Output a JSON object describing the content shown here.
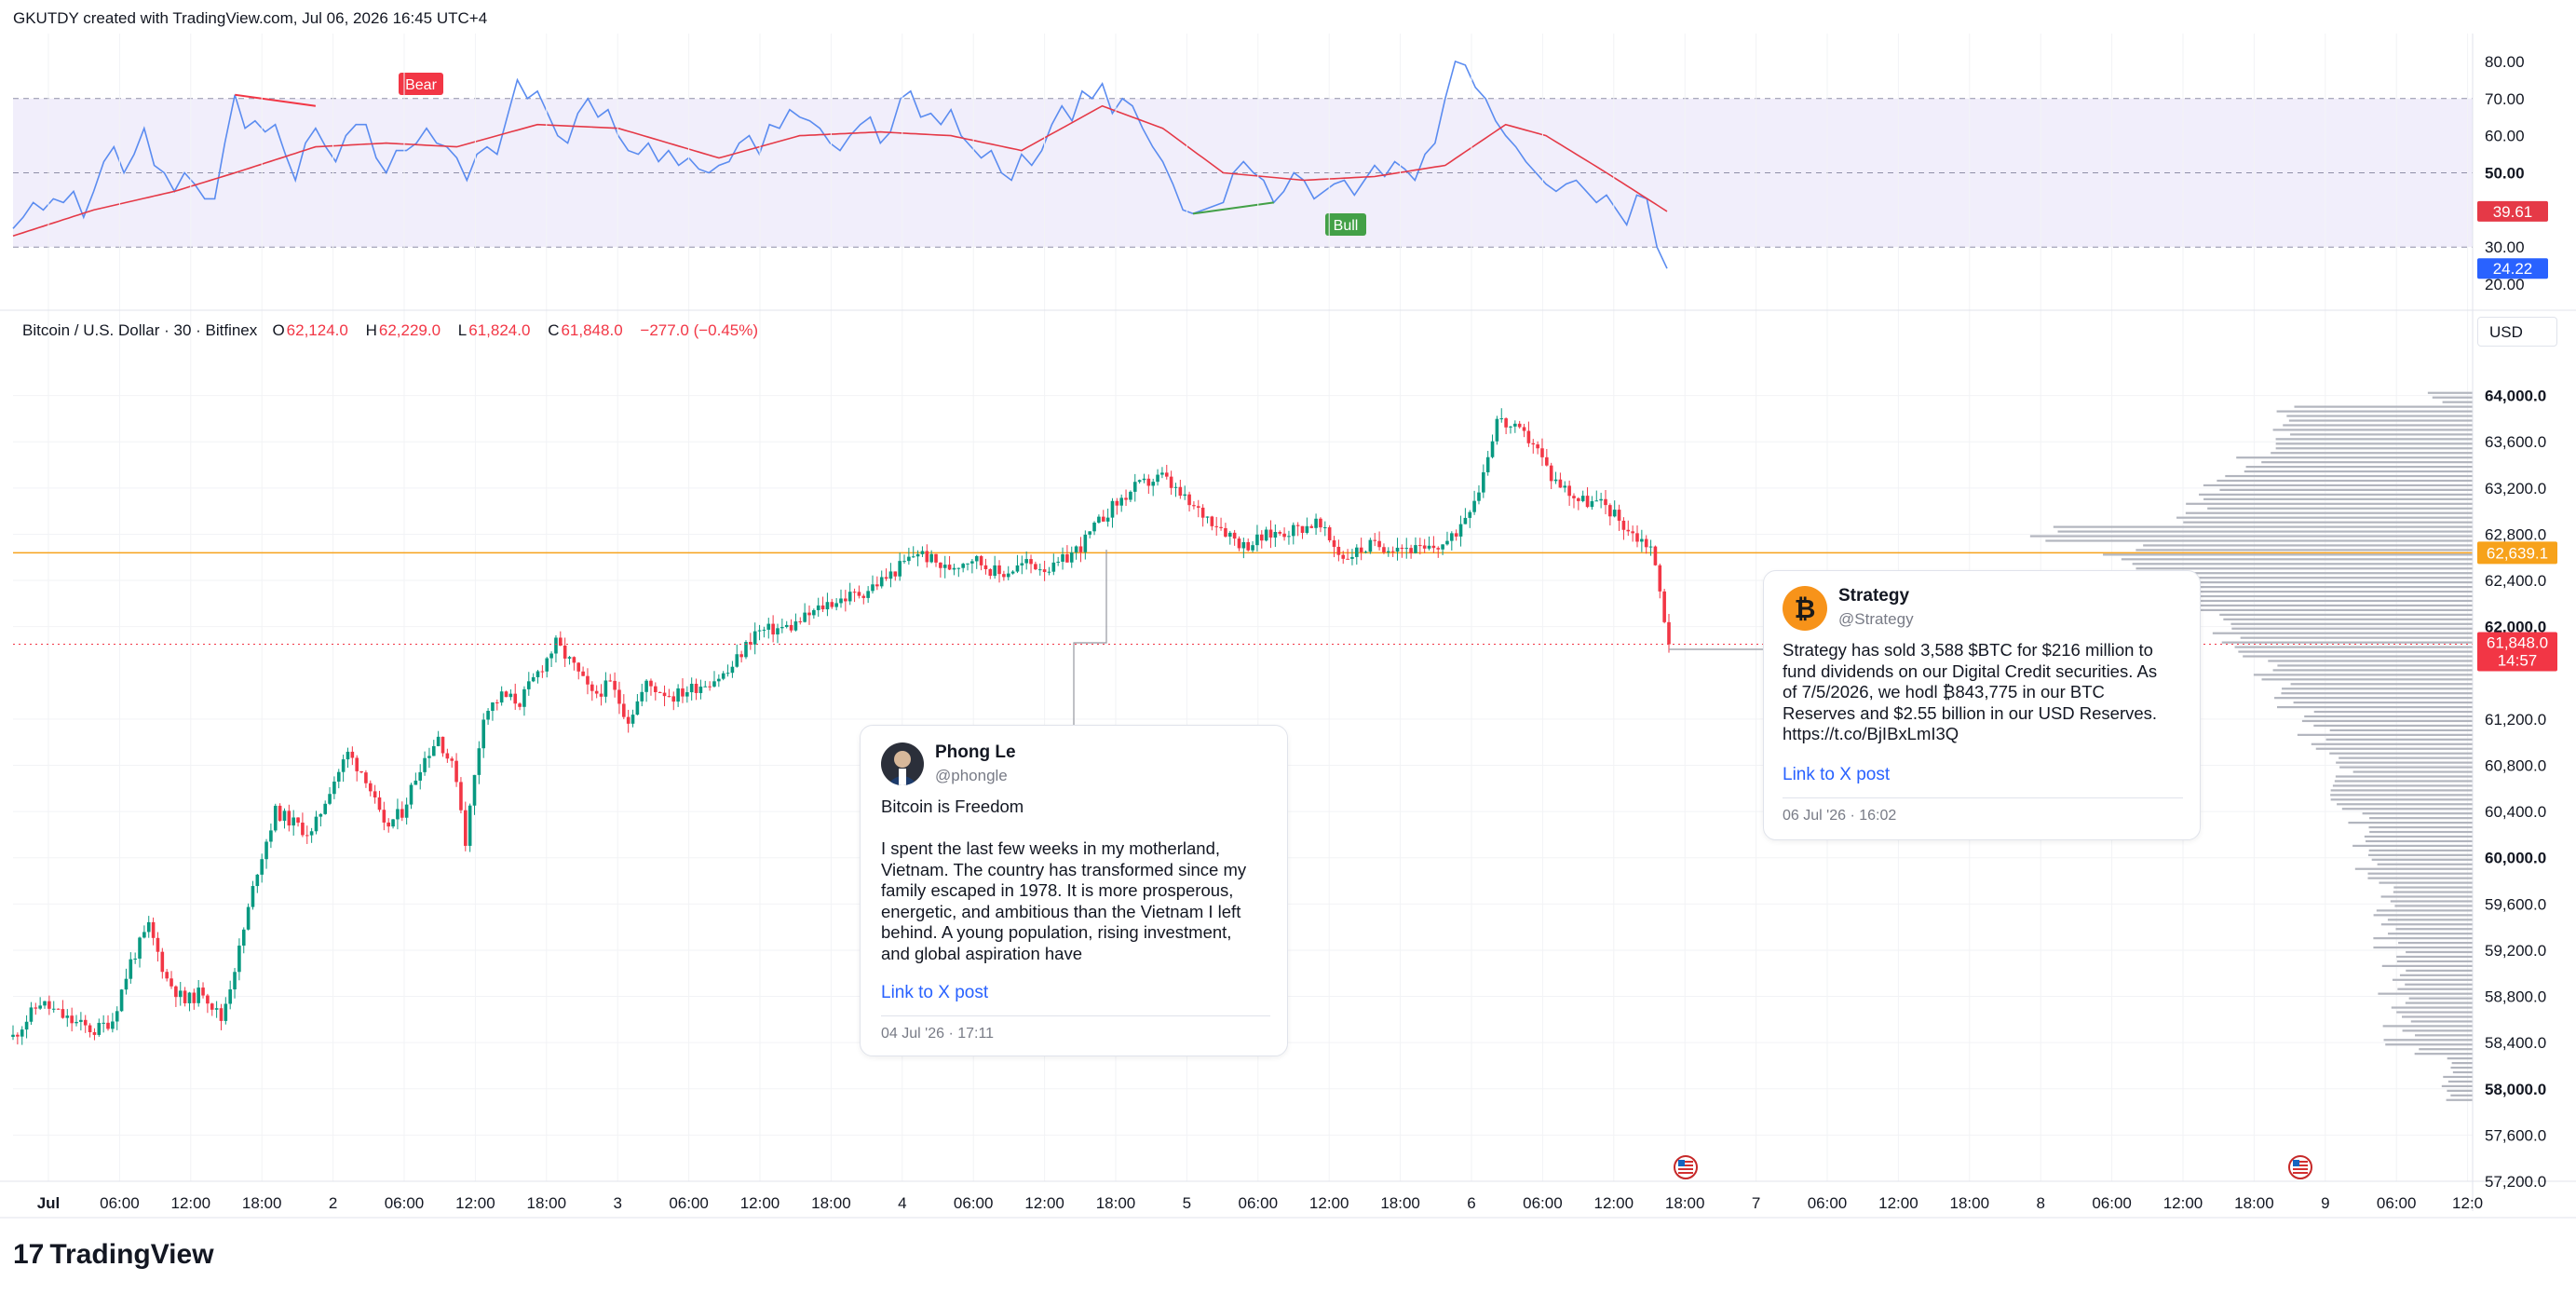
{
  "header": {
    "credit": "GKUTDY created with TradingView.com, Jul 06, 2026 16:45 UTC+4"
  },
  "footer": {
    "logo_text": "TradingView",
    "logo_mark": "17"
  },
  "legend": {
    "title": "Bitcoin / U.S. Dollar · 30 · Bitfinex",
    "o_label": "O",
    "o_value": "62,124.0",
    "h_label": "H",
    "h_value": "62,229.0",
    "l_label": "L",
    "l_value": "61,824.0",
    "c_label": "C",
    "c_value": "61,848.0",
    "change": "−277.0 (−0.45%)"
  },
  "currency_button": "USD",
  "colors": {
    "up": "#089981",
    "down": "#f23645",
    "rsi_line": "#5b8cf0",
    "rsi_ma": "#e53947",
    "rsi_band": "#f1eefb",
    "hline": "#f7a21b",
    "bear": "#f23645",
    "bull": "#43a047"
  },
  "chart_data": [
    {
      "type": "line",
      "title": "",
      "y_axis": {
        "min": 15,
        "max": 86,
        "ticks": [
          "80.00",
          "70.00",
          "60.00",
          "50.00",
          "30.00",
          "20.00"
        ],
        "tick_values": [
          80,
          70,
          60,
          50,
          30,
          20
        ]
      },
      "levels": {
        "upper": 70,
        "middle": 50,
        "lower": 30
      },
      "last_values": {
        "rsi": "24.22",
        "ma": "39.61"
      },
      "rsi_points": [
        [
          0,
          35
        ],
        [
          1,
          38
        ],
        [
          2,
          42
        ],
        [
          3,
          40
        ],
        [
          4,
          43
        ],
        [
          5,
          42
        ],
        [
          6,
          45
        ],
        [
          7,
          38
        ],
        [
          8,
          45
        ],
        [
          9,
          53
        ],
        [
          10,
          57
        ],
        [
          11,
          50
        ],
        [
          12,
          55
        ],
        [
          13,
          62
        ],
        [
          14,
          52
        ],
        [
          15,
          50
        ],
        [
          16,
          45
        ],
        [
          17,
          50
        ],
        [
          18,
          47
        ],
        [
          19,
          43
        ],
        [
          20,
          43
        ],
        [
          21,
          58
        ],
        [
          22,
          71
        ],
        [
          23,
          62
        ],
        [
          24,
          64
        ],
        [
          25,
          61
        ],
        [
          26,
          63
        ],
        [
          27,
          55
        ],
        [
          28,
          48
        ],
        [
          29,
          58
        ],
        [
          30,
          62
        ],
        [
          31,
          57
        ],
        [
          32,
          53
        ],
        [
          33,
          60
        ],
        [
          34,
          63
        ],
        [
          35,
          63
        ],
        [
          36,
          54
        ],
        [
          37,
          50
        ],
        [
          38,
          56
        ],
        [
          39,
          56
        ],
        [
          40,
          58
        ],
        [
          41,
          62
        ],
        [
          42,
          58
        ],
        [
          43,
          57
        ],
        [
          44,
          54
        ],
        [
          45,
          48
        ],
        [
          46,
          55
        ],
        [
          47,
          57
        ],
        [
          48,
          55
        ],
        [
          49,
          65
        ],
        [
          50,
          75
        ],
        [
          51,
          70
        ],
        [
          52,
          72
        ],
        [
          53,
          66
        ],
        [
          54,
          60
        ],
        [
          55,
          58
        ],
        [
          56,
          66
        ],
        [
          57,
          70
        ],
        [
          58,
          65
        ],
        [
          59,
          67
        ],
        [
          60,
          60
        ],
        [
          61,
          56
        ],
        [
          62,
          55
        ],
        [
          63,
          58
        ],
        [
          64,
          53
        ],
        [
          65,
          56
        ],
        [
          66,
          52
        ],
        [
          67,
          54
        ],
        [
          68,
          51
        ],
        [
          69,
          50
        ],
        [
          70,
          52
        ],
        [
          71,
          53
        ],
        [
          72,
          58
        ],
        [
          73,
          60
        ],
        [
          74,
          55
        ],
        [
          75,
          63
        ],
        [
          76,
          62
        ],
        [
          77,
          67
        ],
        [
          78,
          65
        ],
        [
          79,
          64
        ],
        [
          80,
          62
        ],
        [
          81,
          58
        ],
        [
          82,
          56
        ],
        [
          83,
          60
        ],
        [
          84,
          63
        ],
        [
          85,
          65
        ],
        [
          86,
          58
        ],
        [
          87,
          61
        ],
        [
          88,
          70
        ],
        [
          89,
          72
        ],
        [
          90,
          65
        ],
        [
          91,
          66
        ],
        [
          92,
          63
        ],
        [
          93,
          67
        ],
        [
          94,
          60
        ],
        [
          95,
          57
        ],
        [
          96,
          54
        ],
        [
          97,
          56
        ],
        [
          98,
          50
        ],
        [
          99,
          48
        ],
        [
          100,
          55
        ],
        [
          101,
          52
        ],
        [
          102,
          56
        ],
        [
          103,
          63
        ],
        [
          104,
          68
        ],
        [
          105,
          64
        ],
        [
          106,
          72
        ],
        [
          107,
          70
        ],
        [
          108,
          74
        ],
        [
          109,
          66
        ],
        [
          110,
          70
        ],
        [
          111,
          68
        ],
        [
          112,
          62
        ],
        [
          113,
          57
        ],
        [
          114,
          53
        ],
        [
          115,
          47
        ],
        [
          116,
          40
        ],
        [
          117,
          39
        ],
        [
          118,
          40
        ],
        [
          119,
          41
        ],
        [
          120,
          42
        ],
        [
          121,
          50
        ],
        [
          122,
          53
        ],
        [
          123,
          50
        ],
        [
          124,
          48
        ],
        [
          125,
          42
        ],
        [
          126,
          45
        ],
        [
          127,
          50
        ],
        [
          128,
          48
        ],
        [
          129,
          43
        ],
        [
          130,
          45
        ],
        [
          131,
          47
        ],
        [
          132,
          48
        ],
        [
          133,
          44
        ],
        [
          134,
          48
        ],
        [
          135,
          52
        ],
        [
          136,
          49
        ],
        [
          137,
          53
        ],
        [
          138,
          51
        ],
        [
          139,
          48
        ],
        [
          140,
          55
        ],
        [
          141,
          58
        ],
        [
          142,
          70
        ],
        [
          143,
          80
        ],
        [
          144,
          79
        ],
        [
          145,
          73
        ],
        [
          146,
          70
        ],
        [
          147,
          64
        ],
        [
          148,
          60
        ],
        [
          149,
          57
        ],
        [
          150,
          53
        ],
        [
          151,
          50
        ],
        [
          152,
          47
        ],
        [
          153,
          45
        ],
        [
          154,
          47
        ],
        [
          155,
          48
        ],
        [
          156,
          45
        ],
        [
          157,
          42
        ],
        [
          158,
          44
        ],
        [
          159,
          40
        ],
        [
          160,
          36
        ],
        [
          161,
          44
        ],
        [
          162,
          43
        ],
        [
          163,
          30
        ],
        [
          164,
          24.22
        ]
      ],
      "ma_points": [
        [
          0,
          33
        ],
        [
          8,
          40
        ],
        [
          16,
          45
        ],
        [
          22,
          50
        ],
        [
          30,
          57
        ],
        [
          37,
          58
        ],
        [
          44,
          57
        ],
        [
          52,
          63
        ],
        [
          60,
          62
        ],
        [
          70,
          54
        ],
        [
          78,
          60
        ],
        [
          86,
          61
        ],
        [
          93,
          60
        ],
        [
          100,
          56
        ],
        [
          108,
          68
        ],
        [
          114,
          62
        ],
        [
          120,
          50
        ],
        [
          128,
          48
        ],
        [
          135,
          49
        ],
        [
          142,
          52
        ],
        [
          148,
          63
        ],
        [
          152,
          60
        ],
        [
          158,
          50
        ],
        [
          164,
          39.61
        ]
      ],
      "annotations": [
        {
          "text": "Bear"
        },
        {
          "text": "Bull"
        }
      ]
    },
    {
      "type": "candlestick",
      "title": "Bitcoin / U.S. Dollar · 30 · Bitfinex",
      "y_axis": {
        "min": 57200,
        "max": 64400,
        "ticks": [
          "64,000.0",
          "63,600.0",
          "63,200.0",
          "62,800.0",
          "62,400.0",
          "62,000.0",
          "61,200.0",
          "60,800.0",
          "60,400.0",
          "60,000.0",
          "59,600.0",
          "59,200.0",
          "58,800.0",
          "58,400.0",
          "58,000.0",
          "57,600.0",
          "57,200.0"
        ],
        "tick_values": [
          64000,
          63600,
          63200,
          62800,
          62400,
          62000,
          61200,
          60800,
          60400,
          60000,
          59600,
          59200,
          58800,
          58400,
          58000,
          57600,
          57200
        ]
      },
      "x_axis": {
        "ticks": [
          "Jul",
          "06:00",
          "12:00",
          "18:00",
          "2",
          "06:00",
          "12:00",
          "18:00",
          "3",
          "06:00",
          "12:00",
          "18:00",
          "4",
          "06:00",
          "12:00",
          "18:00",
          "5",
          "06:00",
          "12:00",
          "18:00",
          "6",
          "06:00",
          "12:00",
          "18:00",
          "7",
          "06:00",
          "12:00",
          "18:00",
          "8",
          "06:00",
          "12:00",
          "18:00",
          "9",
          "06:00",
          "12:0"
        ]
      },
      "horizontal_line": {
        "value": 62639.1,
        "label": "62,639.1"
      },
      "last_price": {
        "value": 61848.0,
        "label": "61,848.0",
        "countdown": "14:57"
      },
      "close_anchors": [
        [
          0,
          58450
        ],
        [
          6,
          58750
        ],
        [
          12,
          58600
        ],
        [
          18,
          58500
        ],
        [
          22,
          58600
        ],
        [
          26,
          59100
        ],
        [
          30,
          59400
        ],
        [
          34,
          58950
        ],
        [
          38,
          58750
        ],
        [
          42,
          58850
        ],
        [
          46,
          58600
        ],
        [
          50,
          59200
        ],
        [
          54,
          59900
        ],
        [
          58,
          60400
        ],
        [
          62,
          60300
        ],
        [
          66,
          60200
        ],
        [
          70,
          60600
        ],
        [
          74,
          60900
        ],
        [
          78,
          60700
        ],
        [
          82,
          60250
        ],
        [
          86,
          60400
        ],
        [
          90,
          60800
        ],
        [
          94,
          61050
        ],
        [
          98,
          60700
        ],
        [
          100,
          60150
        ],
        [
          104,
          61250
        ],
        [
          108,
          61400
        ],
        [
          112,
          61350
        ],
        [
          116,
          61600
        ],
        [
          120,
          61850
        ],
        [
          124,
          61650
        ],
        [
          128,
          61400
        ],
        [
          132,
          61500
        ],
        [
          136,
          61200
        ],
        [
          140,
          61500
        ],
        [
          146,
          61400
        ],
        [
          152,
          61500
        ],
        [
          158,
          61600
        ],
        [
          164,
          61950
        ],
        [
          172,
          62000
        ],
        [
          180,
          62200
        ],
        [
          188,
          62300
        ],
        [
          194,
          62450
        ],
        [
          200,
          62650
        ],
        [
          206,
          62500
        ],
        [
          212,
          62600
        ],
        [
          218,
          62450
        ],
        [
          224,
          62550
        ],
        [
          230,
          62500
        ],
        [
          236,
          62700
        ],
        [
          242,
          63000
        ],
        [
          248,
          63200
        ],
        [
          254,
          63300
        ],
        [
          260,
          63050
        ],
        [
          266,
          62900
        ],
        [
          272,
          62700
        ],
        [
          278,
          62800
        ],
        [
          284,
          62850
        ],
        [
          288,
          62900
        ],
        [
          294,
          62600
        ],
        [
          300,
          62700
        ],
        [
          306,
          62700
        ],
        [
          312,
          62650
        ],
        [
          318,
          62750
        ],
        [
          324,
          63200
        ],
        [
          328,
          63800
        ],
        [
          332,
          63700
        ],
        [
          336,
          63600
        ],
        [
          340,
          63300
        ],
        [
          346,
          63100
        ],
        [
          352,
          63050
        ],
        [
          358,
          62800
        ],
        [
          362,
          62700
        ],
        [
          364,
          62300
        ],
        [
          366,
          61848
        ]
      ],
      "x_anchor_dates": {
        "start": "Jul",
        "end": "9"
      },
      "volume_profile": "horizontal histogram on right side"
    }
  ],
  "tweets": [
    {
      "name": "Phong Le",
      "handle": "@phongle",
      "text": "Bitcoin is Freedom\n\nI spent the last few weeks in my motherland,\nVietnam. The country has transformed since my\nfamily escaped in 1978. It is more prosperous,\nenergetic, and ambitious than the Vietnam I left\nbehind. A young population, rising investment,\nand global aspiration have",
      "link": "Link to X post",
      "date": "04 Jul '26 · 17:11"
    },
    {
      "name": "Strategy",
      "handle": "@Strategy",
      "text": "Strategy has sold 3,588 $BTC for $216 million to\nfund dividends on our Digital Credit securities. As\nof 7/5/2026, we hodl ₿843,775 in our BTC\nReserves and $2.55 billion in our USD Reserves.\nhttps://t.co/BjIBxLmI3Q",
      "link": "Link to X post",
      "date": "06 Jul '26 · 16:02"
    }
  ]
}
